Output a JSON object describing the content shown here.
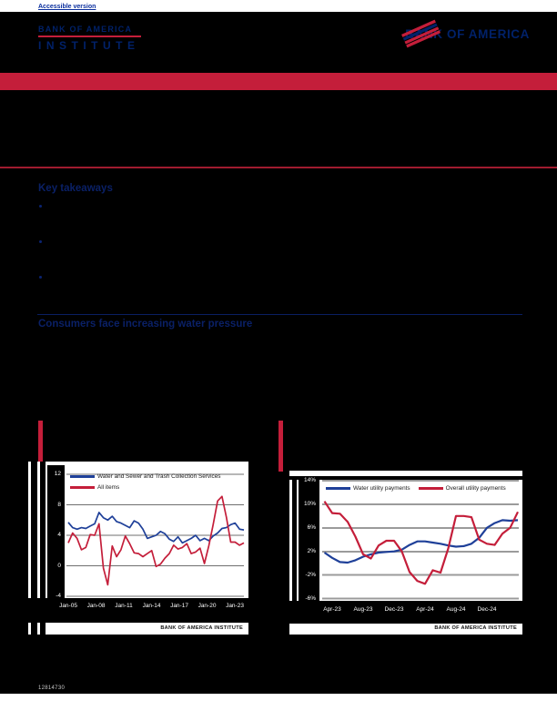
{
  "header": {
    "accessible_link": "Accessible version",
    "institute_logo": {
      "line1": "BANK OF AMERICA",
      "line2": "INSTITUTE"
    },
    "brand_logo_text": "BANK OF AMERICA"
  },
  "key_takeaways": {
    "title": "Key takeaways",
    "bullet_count": 3
  },
  "body_heading": "Consumers face increasing water pressure",
  "footer": {
    "id_number": "12814730"
  },
  "colors": {
    "accent_red": "#C41E3A",
    "brand_navy": "#012169",
    "chart_blue": "#1F4099",
    "chart_red": "#C41E3A",
    "grid_left": "#6f6f6f",
    "grid_right": "#9b9b9b"
  },
  "chart_data": [
    {
      "type": "line",
      "title": "",
      "x_start_year": 2005,
      "x_step_years": 0.5,
      "ylim": [
        -4,
        12
      ],
      "yticks": [
        "12",
        "8",
        "4",
        "0",
        "-4"
      ],
      "xticks": [
        "Jan-05",
        "Jan-08",
        "Jan-11",
        "Jan-14",
        "Jan-17",
        "Jan-20",
        "Jan-23"
      ],
      "legend_position": "top-left-stacked",
      "grid": "horizontal",
      "source": "BANK OF AMERICA INSTITUTE",
      "series": [
        {
          "name": "Water and Sewer and Trash Collection Services",
          "color": "#1F4099",
          "values": [
            5.7,
            5.0,
            4.8,
            5.0,
            4.9,
            5.2,
            5.5,
            7.0,
            6.3,
            6.0,
            6.5,
            5.8,
            5.6,
            5.3,
            5.0,
            5.9,
            5.6,
            4.8,
            3.6,
            3.8,
            4.0,
            4.5,
            4.2,
            3.5,
            3.2,
            3.8,
            3.0,
            3.3,
            3.6,
            4.0,
            3.3,
            3.6,
            3.3,
            3.9,
            4.3,
            4.9,
            5.0,
            5.4,
            5.6,
            4.8,
            4.7
          ]
        },
        {
          "name": "All items",
          "color": "#C41E3A",
          "values": [
            3.0,
            4.3,
            3.6,
            2.1,
            2.4,
            4.1,
            4.0,
            5.5,
            -0.3,
            -2.5,
            2.6,
            1.2,
            2.1,
            3.9,
            2.9,
            1.7,
            1.6,
            1.2,
            1.6,
            2.0,
            -0.1,
            0.2,
            1.0,
            1.6,
            2.7,
            2.2,
            2.4,
            2.9,
            1.6,
            1.8,
            2.3,
            0.3,
            2.6,
            5.4,
            8.5,
            9.1,
            6.4,
            3.1,
            3.1,
            2.7,
            3.0
          ]
        }
      ]
    },
    {
      "type": "line",
      "title": "",
      "x_start_month": "Mar-23",
      "x_step_months": 1,
      "ylim": [
        -6,
        14
      ],
      "yticks": [
        "14%",
        "10%",
        "6%",
        "2%",
        "-2%",
        "-6%"
      ],
      "xticks": [
        "Apr-23",
        "Aug-23",
        "Dec-23",
        "Apr-24",
        "Aug-24",
        "Dec-24"
      ],
      "legend_position": "top-row",
      "grid": "horizontal",
      "source": "BANK OF AMERICA INSTITUTE",
      "series": [
        {
          "name": "Water utility payments",
          "color": "#1F4099",
          "values": [
            1.8,
            0.9,
            0.2,
            0.1,
            0.5,
            1.1,
            1.5,
            1.8,
            1.9,
            2.0,
            2.3,
            3.1,
            3.7,
            3.7,
            3.5,
            3.3,
            3.0,
            2.8,
            2.9,
            3.3,
            4.3,
            6.0,
            6.8,
            7.3,
            7.2,
            7.3
          ]
        },
        {
          "name": "Overall utility payments",
          "color": "#C41E3A",
          "values": [
            10.5,
            8.5,
            8.4,
            7.0,
            4.5,
            1.5,
            0.8,
            3.0,
            3.8,
            3.8,
            2.0,
            -1.5,
            -3.0,
            -3.5,
            -1.2,
            -1.6,
            2.5,
            8.0,
            8.0,
            7.8,
            4.0,
            3.3,
            3.1,
            5.0,
            6.0,
            8.7
          ]
        }
      ]
    }
  ]
}
